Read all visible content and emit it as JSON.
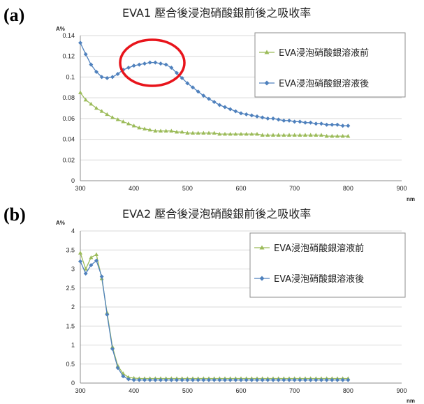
{
  "chart_data": [
    {
      "panel_label": "(a)",
      "type": "line",
      "title": "EVA1  壓合後浸泡硝酸銀前後之吸收率",
      "ylabel": "A%",
      "xlabel": "nm",
      "xlim": [
        300,
        900
      ],
      "ylim": [
        0,
        0.14
      ],
      "xticks": [
        300,
        400,
        500,
        600,
        700,
        800,
        900
      ],
      "yticks": [
        0,
        0.02,
        0.04,
        0.06,
        0.08,
        0.1,
        0.12,
        0.14
      ],
      "ytick_labels": [
        "0",
        "0.02",
        "0.04",
        "0.06",
        "0.08",
        "0.1",
        "0.12",
        "0.14"
      ],
      "grid": true,
      "legend_position": "top-right",
      "annotation": "red circle around the 400–470 nm peak",
      "x": [
        300,
        310,
        320,
        330,
        340,
        350,
        360,
        370,
        380,
        390,
        400,
        410,
        420,
        430,
        440,
        450,
        460,
        470,
        480,
        490,
        500,
        510,
        520,
        530,
        540,
        550,
        560,
        570,
        580,
        590,
        600,
        610,
        620,
        630,
        640,
        650,
        660,
        670,
        680,
        690,
        700,
        710,
        720,
        730,
        740,
        750,
        760,
        770,
        780,
        790,
        800
      ],
      "series": [
        {
          "name": "EVA浸泡硝酸銀溶液前",
          "color": "#9bbb59",
          "marker": "triangle",
          "values": [
            0.085,
            0.078,
            0.074,
            0.07,
            0.067,
            0.064,
            0.061,
            0.059,
            0.057,
            0.055,
            0.053,
            0.051,
            0.05,
            0.049,
            0.048,
            0.048,
            0.048,
            0.048,
            0.047,
            0.047,
            0.046,
            0.046,
            0.046,
            0.046,
            0.046,
            0.046,
            0.045,
            0.045,
            0.045,
            0.045,
            0.045,
            0.045,
            0.045,
            0.045,
            0.044,
            0.044,
            0.044,
            0.044,
            0.044,
            0.044,
            0.044,
            0.044,
            0.044,
            0.044,
            0.044,
            0.044,
            0.043,
            0.043,
            0.043,
            0.043,
            0.043
          ]
        },
        {
          "name": "EVA浸泡硝酸銀溶液後",
          "color": "#4f81bd",
          "marker": "diamond",
          "values": [
            0.133,
            0.122,
            0.112,
            0.105,
            0.1,
            0.099,
            0.1,
            0.103,
            0.107,
            0.109,
            0.111,
            0.112,
            0.113,
            0.114,
            0.114,
            0.113,
            0.112,
            0.109,
            0.104,
            0.099,
            0.094,
            0.09,
            0.086,
            0.082,
            0.079,
            0.076,
            0.073,
            0.071,
            0.069,
            0.067,
            0.065,
            0.064,
            0.063,
            0.062,
            0.061,
            0.06,
            0.06,
            0.059,
            0.058,
            0.058,
            0.057,
            0.057,
            0.056,
            0.056,
            0.055,
            0.055,
            0.054,
            0.054,
            0.054,
            0.053,
            0.053
          ]
        }
      ]
    },
    {
      "panel_label": "(b)",
      "type": "line",
      "title": "EVA2  壓合後浸泡硝酸銀前後之吸收率",
      "ylabel": "A%",
      "xlabel": "nm",
      "xlim": [
        300,
        900
      ],
      "ylim": [
        0,
        4
      ],
      "xticks": [
        300,
        400,
        500,
        600,
        700,
        800,
        900
      ],
      "yticks": [
        0,
        0.5,
        1,
        1.5,
        2,
        2.5,
        3,
        3.5,
        4
      ],
      "ytick_labels": [
        "0",
        "0.5",
        "1",
        "1.5",
        "2",
        "2.5",
        "3",
        "3.5",
        "4"
      ],
      "grid": true,
      "legend_position": "top-right",
      "x": [
        300,
        310,
        320,
        330,
        340,
        350,
        360,
        370,
        380,
        390,
        400,
        410,
        420,
        430,
        440,
        450,
        460,
        470,
        480,
        490,
        500,
        510,
        520,
        530,
        540,
        550,
        560,
        570,
        580,
        590,
        600,
        610,
        620,
        630,
        640,
        650,
        660,
        670,
        680,
        690,
        700,
        710,
        720,
        730,
        740,
        750,
        760,
        770,
        780,
        790,
        800
      ],
      "series": [
        {
          "name": "EVA浸泡硝酸銀溶液前",
          "color": "#9bbb59",
          "marker": "triangle",
          "values": [
            3.42,
            3.0,
            3.3,
            3.38,
            2.75,
            1.85,
            0.95,
            0.45,
            0.25,
            0.15,
            0.13,
            0.12,
            0.12,
            0.12,
            0.12,
            0.12,
            0.12,
            0.12,
            0.12,
            0.12,
            0.12,
            0.12,
            0.12,
            0.12,
            0.12,
            0.12,
            0.12,
            0.12,
            0.12,
            0.12,
            0.12,
            0.12,
            0.12,
            0.12,
            0.12,
            0.12,
            0.12,
            0.12,
            0.12,
            0.12,
            0.12,
            0.12,
            0.12,
            0.12,
            0.12,
            0.12,
            0.12,
            0.12,
            0.12,
            0.12,
            0.12
          ]
        },
        {
          "name": "EVA浸泡硝酸銀溶液後",
          "color": "#4f81bd",
          "marker": "diamond",
          "values": [
            3.2,
            2.88,
            3.1,
            3.22,
            2.8,
            1.8,
            0.9,
            0.4,
            0.18,
            0.1,
            0.08,
            0.08,
            0.08,
            0.08,
            0.08,
            0.08,
            0.08,
            0.08,
            0.08,
            0.08,
            0.08,
            0.08,
            0.08,
            0.08,
            0.08,
            0.08,
            0.08,
            0.08,
            0.08,
            0.08,
            0.08,
            0.08,
            0.08,
            0.08,
            0.08,
            0.08,
            0.08,
            0.08,
            0.08,
            0.08,
            0.08,
            0.08,
            0.08,
            0.08,
            0.08,
            0.08,
            0.08,
            0.08,
            0.08,
            0.08,
            0.08
          ]
        }
      ]
    }
  ]
}
